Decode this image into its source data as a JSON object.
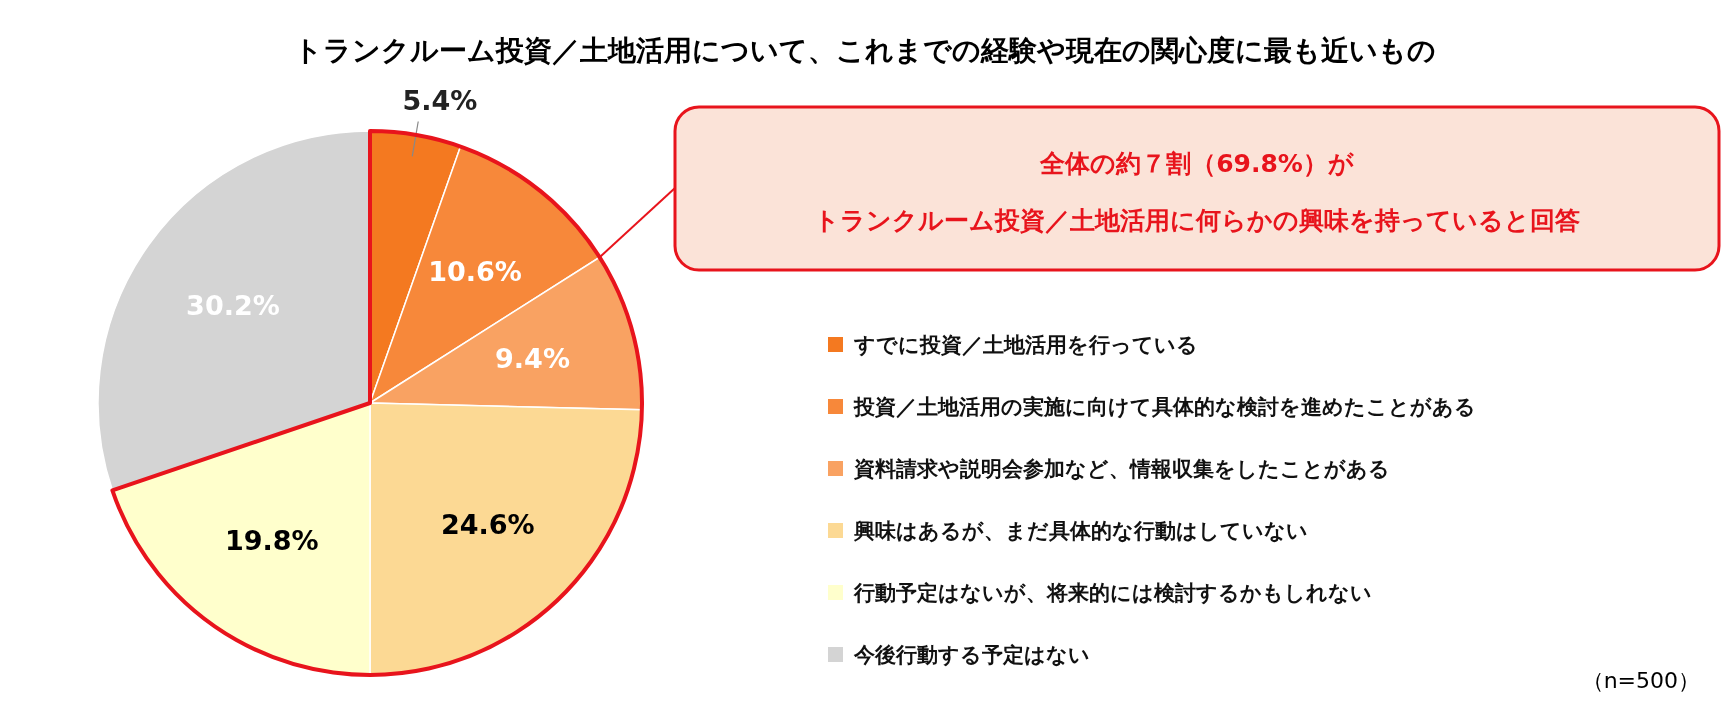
{
  "chart_data": {
    "type": "pie",
    "title": "トランクルーム投資／土地活用について、これまでの経験や現在の関心度に最も近いもの",
    "categories": [
      "すでに投資／土地活用を行っている",
      "投資／土地活用の実施に向けて具体的な検討を進めたことがある",
      "資料請求や説明会参加など、情報収集をしたことがある",
      "興味はあるが、まだ具体的な行動はしていない",
      "行動予定はないが、将来的には検討するかもしれない",
      "今後行動する予定はない"
    ],
    "values": [
      5.4,
      10.6,
      9.4,
      24.6,
      19.8,
      30.2
    ],
    "colors": [
      "#f47920",
      "#f7883a",
      "#f9a262",
      "#fcd994",
      "#ffffcc",
      "#d4d4d4"
    ],
    "value_labels": [
      "5.4%",
      "10.6%",
      "9.4%",
      "24.6%",
      "19.8%",
      "30.2%"
    ],
    "legend": "right",
    "annotations": [
      "全体の約７割（69.8%）が",
      "トランクルーム投資／土地活用に何らかの興味を持っていると回答",
      "（n=500）"
    ]
  }
}
